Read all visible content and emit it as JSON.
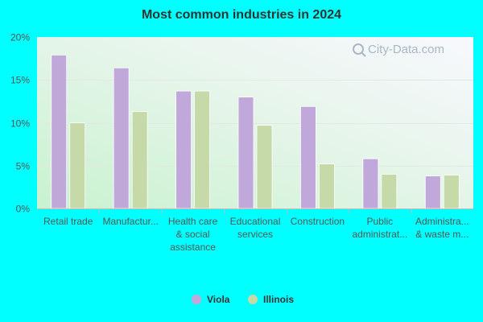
{
  "chart_data": {
    "type": "bar",
    "title": "Most common industries in 2024",
    "categories": [
      [
        "Retail trade"
      ],
      [
        "Manufactur..."
      ],
      [
        "Health care",
        "& social",
        "assistance"
      ],
      [
        "Educational",
        "services"
      ],
      [
        "Construction"
      ],
      [
        "Public",
        "administrat..."
      ],
      [
        "Administra...",
        "& waste m..."
      ]
    ],
    "series": [
      {
        "name": "Viola",
        "color": "#C0A8DA",
        "values": [
          17.9,
          16.4,
          13.7,
          13.0,
          11.9,
          5.8,
          3.8
        ]
      },
      {
        "name": "Illinois",
        "color": "#C6D9A8",
        "values": [
          10.0,
          11.3,
          13.7,
          9.7,
          5.2,
          4.0,
          3.9
        ]
      }
    ],
    "y_ticks": [
      "0%",
      "5%",
      "10%",
      "15%",
      "20%"
    ],
    "ylim": [
      0,
      20
    ],
    "grid": true,
    "legend": "bottom-center"
  },
  "watermark": "City-Data.com"
}
